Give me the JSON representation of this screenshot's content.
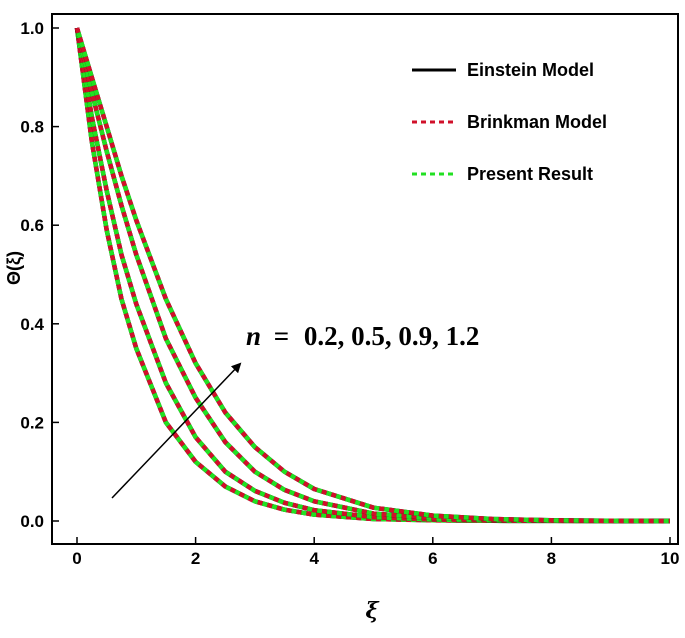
{
  "chart_data": {
    "type": "line",
    "xlabel": "ξ",
    "ylabel": "Θ(ξ)",
    "xlim": [
      0,
      10
    ],
    "ylim": [
      0,
      1.0
    ],
    "xticks": [
      "0",
      "2",
      "4",
      "6",
      "8",
      "10"
    ],
    "yticks": [
      "0.0",
      "0.2",
      "0.4",
      "0.6",
      "0.8",
      "1.0"
    ],
    "grid": false,
    "legend_position": "top-right",
    "legend": [
      {
        "name": "Einstein Model",
        "color": "#000000",
        "style": "solid"
      },
      {
        "name": "Brinkman Model",
        "color": "#d0102a",
        "style": "dashed"
      },
      {
        "name": "Present Result",
        "color": "#22e022",
        "style": "dashed"
      }
    ],
    "annotation": {
      "var": "n",
      "eq": "=",
      "values": "0.2, 0.5, 0.9, 1.2"
    },
    "x": [
      0,
      0.25,
      0.5,
      0.75,
      1,
      1.5,
      2,
      2.5,
      3,
      3.5,
      4,
      5,
      6,
      7,
      8,
      9,
      10
    ],
    "series": [
      {
        "values": [
          1.0,
          0.77,
          0.59,
          0.45,
          0.35,
          0.2,
          0.12,
          0.07,
          0.04,
          0.023,
          0.013,
          0.004,
          0.0015,
          0.0005,
          0.0002,
          0.0001,
          0.0
        ]
      },
      {
        "values": [
          1.0,
          0.82,
          0.67,
          0.54,
          0.44,
          0.28,
          0.17,
          0.1,
          0.061,
          0.037,
          0.022,
          0.008,
          0.003,
          0.001,
          0.0004,
          0.0002,
          0.0
        ]
      },
      {
        "values": [
          1.0,
          0.87,
          0.75,
          0.64,
          0.54,
          0.37,
          0.25,
          0.16,
          0.1,
          0.063,
          0.04,
          0.015,
          0.006,
          0.002,
          0.0008,
          0.0003,
          0.0
        ]
      },
      {
        "values": [
          1.0,
          0.9,
          0.8,
          0.7,
          0.61,
          0.45,
          0.32,
          0.22,
          0.15,
          0.1,
          0.065,
          0.027,
          0.011,
          0.004,
          0.0015,
          0.0005,
          0.0
        ]
      }
    ]
  }
}
